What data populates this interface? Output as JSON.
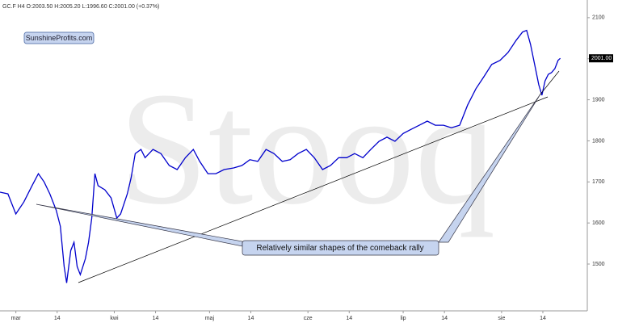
{
  "chart_data": {
    "type": "line",
    "title": "GC.F  H4  O:2003.50  H:2005.20  L:1996.60  C:2001.00  (+0.37%)",
    "watermark": "Stooq",
    "annotations": [
      "SunshineProfits.com",
      "Relatively similar shapes of the comeback rally"
    ],
    "x": [
      -5,
      -2.5,
      0,
      2.5,
      5.1,
      7.1,
      8.9,
      10.7,
      12.7,
      14,
      15.2,
      16,
      17.3,
      18.3,
      19.3,
      20.3,
      21.9,
      22.9,
      23.9,
      24.9,
      25.9,
      28,
      30,
      31.8,
      33,
      35.1,
      36.3,
      37.6,
      39.4,
      40.7,
      43.2,
      45.7,
      48.3,
      50.8,
      53.4,
      55.9,
      57.9,
      60.5,
      63,
      65.6,
      68.6,
      71.2,
      73.7,
      76.2,
      78.8,
      81.3,
      83.9,
      86.4,
      88.9,
      91.5,
      94,
      96.6,
      99.1,
      101.7,
      104.2,
      106.7,
      109.3,
      111.8,
      114.4,
      116.9,
      119.4,
      122,
      124.5,
      127.1,
      129.6,
      132.1,
      134.7,
      137.2,
      139.8,
      142.3,
      144.9,
      147.4,
      149.9,
      152.5,
      155,
      157.6,
      159.6,
      160.9,
      162.1,
      163.4,
      164.7,
      165.7,
      166.7,
      167.7,
      168.7,
      169.8,
      170.8,
      171.5
    ],
    "series": [
      {
        "name": "GC.F",
        "color": "#0000cc",
        "values": [
          1675,
          1671,
          1622,
          1651,
          1691,
          1720,
          1700,
          1671,
          1631,
          1592,
          1494,
          1454,
          1533,
          1553,
          1494,
          1474,
          1513,
          1553,
          1612,
          1720,
          1691,
          1681,
          1661,
          1612,
          1622,
          1671,
          1710,
          1769,
          1779,
          1759,
          1779,
          1769,
          1740,
          1730,
          1759,
          1779,
          1750,
          1720,
          1720,
          1730,
          1734,
          1740,
          1754,
          1750,
          1779,
          1769,
          1750,
          1754,
          1769,
          1779,
          1759,
          1730,
          1740,
          1759,
          1759,
          1769,
          1759,
          1779,
          1799,
          1809,
          1799,
          1818,
          1828,
          1838,
          1848,
          1838,
          1838,
          1832,
          1838,
          1887,
          1927,
          1956,
          1986,
          1996,
          2015,
          2045,
          2065,
          2069,
          2035,
          1986,
          1937,
          1911,
          1946,
          1962,
          1966,
          1976,
          1996,
          2001
        ]
      }
    ],
    "last_price": {
      "value": 2001,
      "label": "2001.00"
    },
    "xlim": [
      -5,
      180
    ],
    "xticks": [
      {
        "value": 0,
        "label": "mar"
      },
      {
        "value": 13,
        "label": "14"
      },
      {
        "value": 31,
        "label": "kwi"
      },
      {
        "value": 44,
        "label": "14"
      },
      {
        "value": 61,
        "label": "maj"
      },
      {
        "value": 74,
        "label": "14"
      },
      {
        "value": 92,
        "label": "cze"
      },
      {
        "value": 105,
        "label": "14"
      },
      {
        "value": 122,
        "label": "lip"
      },
      {
        "value": 135,
        "label": "14"
      },
      {
        "value": 153,
        "label": "sie"
      },
      {
        "value": 166,
        "label": "14"
      }
    ],
    "ylim": [
      1386,
      2143
    ],
    "yticks": [
      1500,
      1600,
      1700,
      1800,
      1900,
      2000,
      2100
    ]
  }
}
